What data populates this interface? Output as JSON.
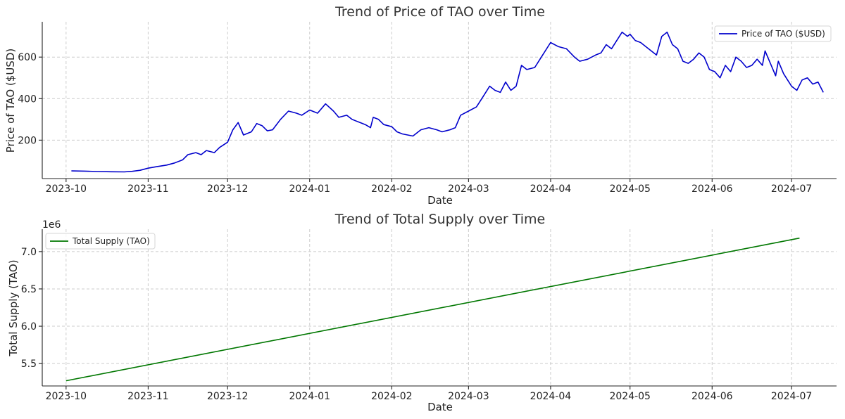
{
  "chart_data": [
    {
      "type": "line",
      "title": "Trend of Price of TAO over Time",
      "xlabel": "Date",
      "ylabel": "Price of TAO ($USD)",
      "x_ticks": [
        "2023-10",
        "2023-11",
        "2023-12",
        "2024-01",
        "2024-02",
        "2024-03",
        "2024-04",
        "2024-05",
        "2024-06",
        "2024-07"
      ],
      "y_ticks": [
        200,
        400,
        600
      ],
      "xlim": [
        "2023-09-22",
        "2024-07-18"
      ],
      "ylim": [
        15,
        770
      ],
      "grid": true,
      "legend": "top-right",
      "series": [
        {
          "name": "Price of TAO ($USD)",
          "color": "#0000cc",
          "points": [
            [
              "2023-10-03",
              52
            ],
            [
              "2023-10-08",
              51
            ],
            [
              "2023-10-13",
              49
            ],
            [
              "2023-10-18",
              48
            ],
            [
              "2023-10-23",
              47
            ],
            [
              "2023-10-26",
              50
            ],
            [
              "2023-10-29",
              55
            ],
            [
              "2023-11-01",
              65
            ],
            [
              "2023-11-04",
              72
            ],
            [
              "2023-11-08",
              80
            ],
            [
              "2023-11-11",
              90
            ],
            [
              "2023-11-14",
              105
            ],
            [
              "2023-11-16",
              130
            ],
            [
              "2023-11-19",
              140
            ],
            [
              "2023-11-21",
              130
            ],
            [
              "2023-11-23",
              150
            ],
            [
              "2023-11-26",
              140
            ],
            [
              "2023-11-28",
              165
            ],
            [
              "2023-12-01",
              190
            ],
            [
              "2023-12-03",
              250
            ],
            [
              "2023-12-05",
              285
            ],
            [
              "2023-12-07",
              225
            ],
            [
              "2023-12-10",
              240
            ],
            [
              "2023-12-12",
              280
            ],
            [
              "2023-12-14",
              270
            ],
            [
              "2023-12-16",
              245
            ],
            [
              "2023-12-18",
              250
            ],
            [
              "2023-12-21",
              300
            ],
            [
              "2023-12-24",
              340
            ],
            [
              "2023-12-27",
              330
            ],
            [
              "2023-12-29",
              320
            ],
            [
              "2024-01-01",
              345
            ],
            [
              "2024-01-04",
              330
            ],
            [
              "2024-01-07",
              375
            ],
            [
              "2024-01-10",
              340
            ],
            [
              "2024-01-12",
              310
            ],
            [
              "2024-01-15",
              320
            ],
            [
              "2024-01-17",
              300
            ],
            [
              "2024-01-20",
              285
            ],
            [
              "2024-01-22",
              275
            ],
            [
              "2024-01-24",
              260
            ],
            [
              "2024-01-25",
              310
            ],
            [
              "2024-01-27",
              300
            ],
            [
              "2024-01-29",
              275
            ],
            [
              "2024-02-01",
              265
            ],
            [
              "2024-02-03",
              240
            ],
            [
              "2024-02-05",
              230
            ],
            [
              "2024-02-07",
              225
            ],
            [
              "2024-02-09",
              220
            ],
            [
              "2024-02-12",
              250
            ],
            [
              "2024-02-15",
              260
            ],
            [
              "2024-02-18",
              250
            ],
            [
              "2024-02-20",
              240
            ],
            [
              "2024-02-23",
              250
            ],
            [
              "2024-02-25",
              260
            ],
            [
              "2024-02-27",
              320
            ],
            [
              "2024-03-01",
              340
            ],
            [
              "2024-03-04",
              360
            ],
            [
              "2024-03-06",
              400
            ],
            [
              "2024-03-09",
              460
            ],
            [
              "2024-03-11",
              440
            ],
            [
              "2024-03-13",
              430
            ],
            [
              "2024-03-15",
              480
            ],
            [
              "2024-03-17",
              440
            ],
            [
              "2024-03-19",
              460
            ],
            [
              "2024-03-21",
              560
            ],
            [
              "2024-03-23",
              540
            ],
            [
              "2024-03-26",
              550
            ],
            [
              "2024-03-29",
              610
            ],
            [
              "2024-04-01",
              670
            ],
            [
              "2024-04-04",
              650
            ],
            [
              "2024-04-07",
              640
            ],
            [
              "2024-04-10",
              600
            ],
            [
              "2024-04-12",
              580
            ],
            [
              "2024-04-15",
              590
            ],
            [
              "2024-04-18",
              610
            ],
            [
              "2024-04-20",
              620
            ],
            [
              "2024-04-22",
              660
            ],
            [
              "2024-04-24",
              640
            ],
            [
              "2024-04-26",
              680
            ],
            [
              "2024-04-28",
              720
            ],
            [
              "2024-04-30",
              700
            ],
            [
              "2024-05-01",
              710
            ],
            [
              "2024-05-03",
              680
            ],
            [
              "2024-05-05",
              670
            ],
            [
              "2024-05-08",
              640
            ],
            [
              "2024-05-11",
              610
            ],
            [
              "2024-05-13",
              700
            ],
            [
              "2024-05-15",
              720
            ],
            [
              "2024-05-17",
              660
            ],
            [
              "2024-05-19",
              640
            ],
            [
              "2024-05-21",
              580
            ],
            [
              "2024-05-23",
              570
            ],
            [
              "2024-05-25",
              590
            ],
            [
              "2024-05-27",
              620
            ],
            [
              "2024-05-29",
              600
            ],
            [
              "2024-05-31",
              540
            ],
            [
              "2024-06-02",
              530
            ],
            [
              "2024-06-04",
              500
            ],
            [
              "2024-06-06",
              560
            ],
            [
              "2024-06-08",
              530
            ],
            [
              "2024-06-10",
              600
            ],
            [
              "2024-06-12",
              580
            ],
            [
              "2024-06-14",
              550
            ],
            [
              "2024-06-16",
              560
            ],
            [
              "2024-06-18",
              590
            ],
            [
              "2024-06-20",
              560
            ],
            [
              "2024-06-21",
              630
            ],
            [
              "2024-06-23",
              570
            ],
            [
              "2024-06-25",
              510
            ],
            [
              "2024-06-26",
              580
            ],
            [
              "2024-06-28",
              520
            ],
            [
              "2024-06-30",
              480
            ],
            [
              "2024-07-01",
              460
            ],
            [
              "2024-07-03",
              440
            ],
            [
              "2024-07-05",
              490
            ],
            [
              "2024-07-07",
              500
            ],
            [
              "2024-07-09",
              470
            ],
            [
              "2024-07-11",
              480
            ],
            [
              "2024-07-13",
              430
            ]
          ]
        }
      ]
    },
    {
      "type": "line",
      "title": "Trend of Total Supply over Time",
      "xlabel": "Date",
      "ylabel": "Total Supply (TAO)",
      "offset_label": "1e6",
      "x_ticks": [
        "2023-10",
        "2023-11",
        "2023-12",
        "2024-01",
        "2024-02",
        "2024-03",
        "2024-04",
        "2024-05",
        "2024-06",
        "2024-07"
      ],
      "y_ticks": [
        5.5,
        6.0,
        6.5,
        7.0
      ],
      "y_tick_labels": [
        "5.5",
        "6.0",
        "6.5",
        "7.0"
      ],
      "xlim": [
        "2023-09-22",
        "2024-07-18"
      ],
      "ylim": [
        5.2,
        7.3
      ],
      "grid": true,
      "legend": "top-left",
      "series": [
        {
          "name": "Total Supply (TAO)",
          "color": "#007700",
          "points": [
            [
              "2023-10-01",
              5.27
            ],
            [
              "2024-07-04",
              7.18
            ]
          ]
        }
      ]
    }
  ]
}
